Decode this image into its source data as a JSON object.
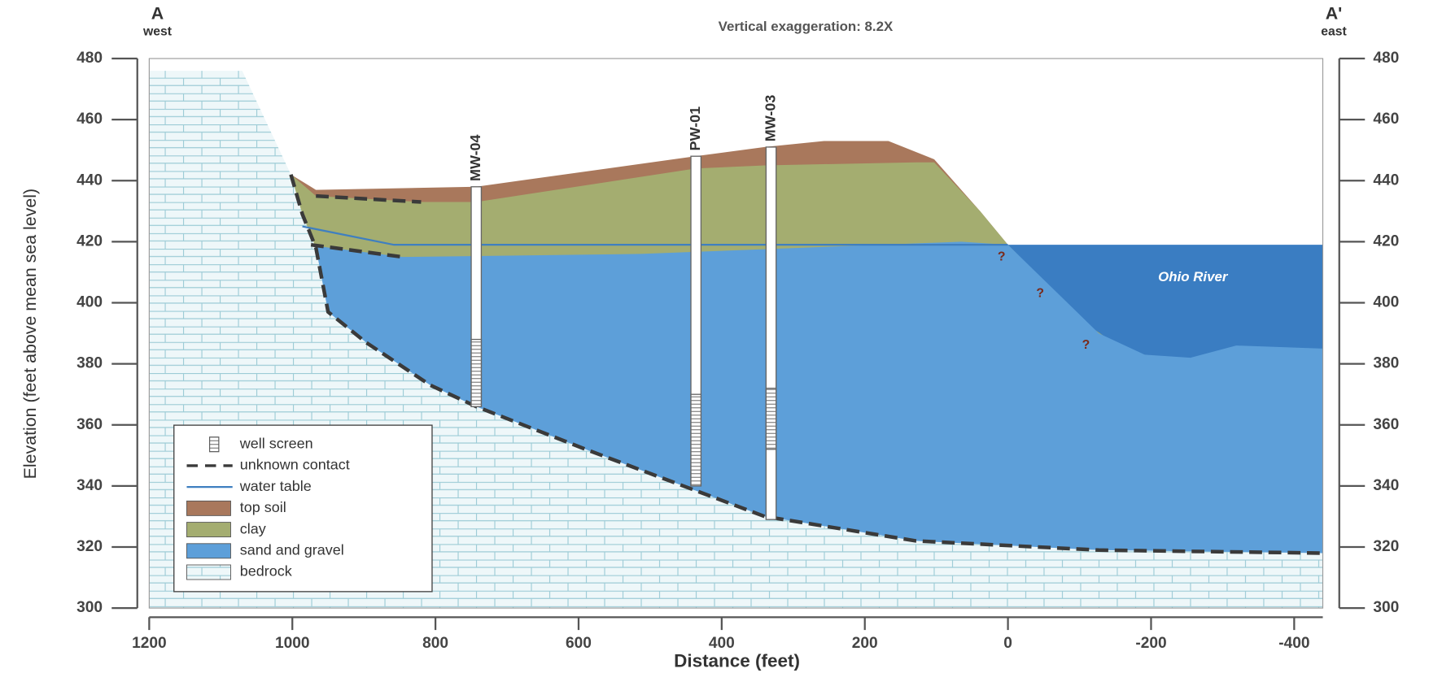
{
  "chart_data": {
    "type": "cross-section",
    "title": "Vertical exaggeration: 8.2X",
    "left_end": {
      "label": "A",
      "direction": "west"
    },
    "right_end": {
      "label": "A'",
      "direction": "east"
    },
    "xlabel": "Distance (feet)",
    "ylabel": "Elevation (feet above mean sea level)",
    "xlim": [
      1200,
      -440
    ],
    "ylim": [
      300,
      480
    ],
    "xticks": [
      1200,
      1000,
      800,
      600,
      400,
      200,
      0,
      -200,
      -400
    ],
    "yticks": [
      300,
      320,
      340,
      360,
      380,
      400,
      420,
      440,
      460,
      480
    ],
    "river": {
      "label": "Ohio River",
      "color": "#3a7dc2",
      "x": [
        0,
        -440
      ],
      "values": [
        419,
        419
      ]
    },
    "layers": [
      {
        "name": "top soil",
        "color": "#a9785c",
        "x": [
          1002,
          967,
          743,
          436,
          340,
          257,
          167,
          103,
          39,
          0
        ],
        "values": [
          442,
          437,
          438,
          448,
          451,
          453,
          453,
          447,
          430,
          419
        ]
      },
      {
        "name": "clay",
        "color": "#a4ad70",
        "x": [
          1002,
          967,
          820,
          743,
          436,
          340,
          129,
          103,
          39,
          0,
          -110,
          -160,
          -191
        ],
        "values": [
          442,
          435,
          433,
          433,
          444,
          445,
          446,
          446,
          430,
          419,
          393,
          385,
          383
        ]
      },
      {
        "name": "sand and gravel",
        "color": "#5d9fd9",
        "x": [
          980,
          846,
          513,
          65,
          0,
          -127,
          -191,
          -255,
          -319,
          -440
        ],
        "values": [
          419,
          415,
          416,
          420,
          419,
          390,
          383,
          382,
          386,
          385
        ]
      },
      {
        "name": "bedrock",
        "color": "#eef7f9",
        "x": [
          1200,
          1070,
          1002,
          986,
          967,
          950,
          897,
          807,
          743,
          590,
          340,
          129,
          -127,
          -440
        ],
        "values": [
          476,
          476,
          442,
          429,
          418,
          397,
          387,
          373,
          366,
          352,
          330,
          322,
          319,
          318
        ]
      }
    ],
    "lines": [
      {
        "name": "unknown contact",
        "color": "#3a3a3a",
        "style": "dashed",
        "x": [
          1002,
          986,
          967,
          950,
          897,
          807,
          743,
          590,
          340,
          129,
          -127,
          -440,
          null,
          974,
          846,
          null,
          967,
          820
        ],
        "values": [
          442,
          429,
          418,
          397,
          387,
          373,
          366,
          352,
          330,
          322,
          319,
          318,
          null,
          419,
          415,
          null,
          435,
          433
        ]
      },
      {
        "name": "water table",
        "color": "#3f7fc0",
        "style": "solid",
        "x": [
          986,
          858,
          0
        ],
        "values": [
          425,
          419,
          419
        ]
      }
    ],
    "well_screen": "well screen",
    "wells": [
      {
        "name": "MW-04",
        "x": 743,
        "top": 438,
        "bottom": 366,
        "screen_top": 388,
        "screen_bottom": 366
      },
      {
        "name": "PW-01",
        "x": 436,
        "top": 448,
        "bottom": 340,
        "screen_top": 370,
        "screen_bottom": 340
      },
      {
        "name": "MW-03",
        "x": 331,
        "top": 451,
        "bottom": 329,
        "screen_top": 372,
        "screen_bottom": 352
      }
    ],
    "annotations": [
      {
        "text": "?",
        "x": 9,
        "y": 415
      },
      {
        "text": "?",
        "x": -45,
        "y": 403
      },
      {
        "text": "?",
        "x": -109,
        "y": 386
      }
    ]
  }
}
